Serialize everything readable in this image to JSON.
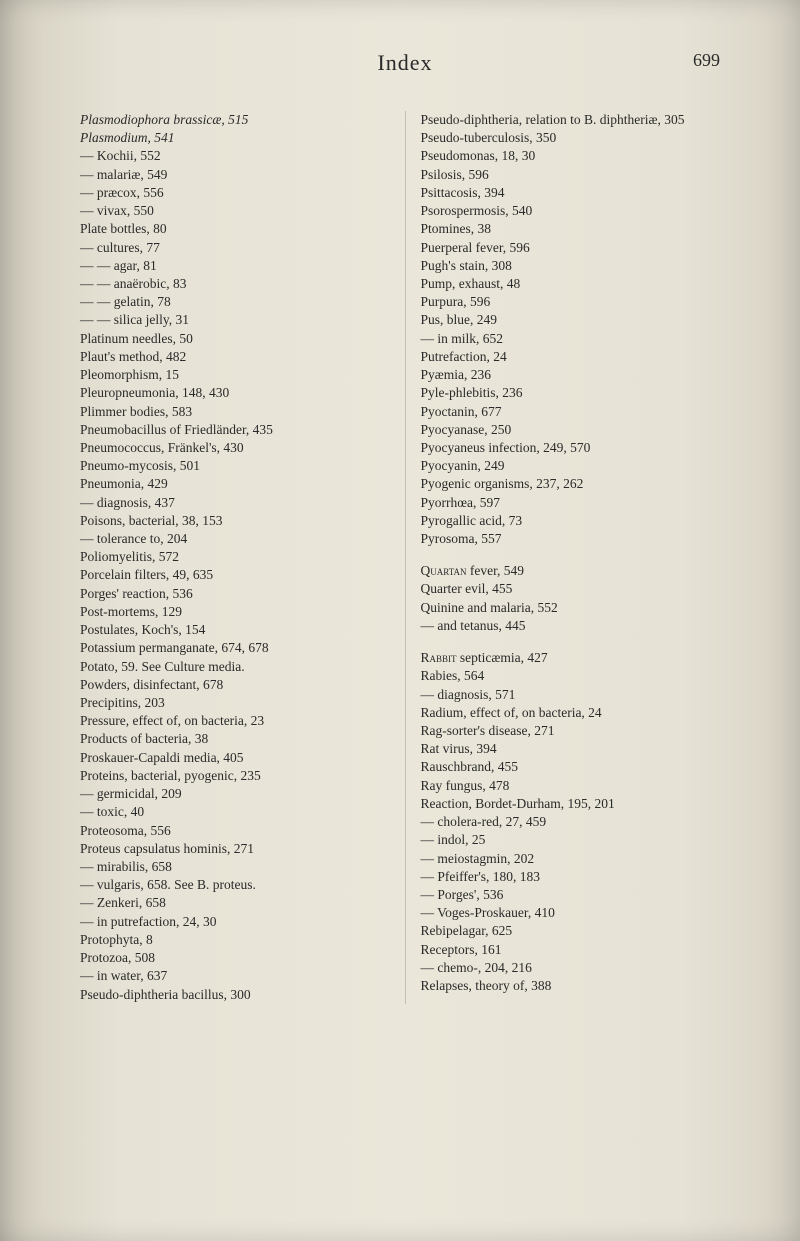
{
  "header": {
    "title": "Index",
    "page_number": "699"
  },
  "left": [
    {
      "text": "Plasmodiophora brassicæ, 515",
      "lvl": 0,
      "it": true
    },
    {
      "text": "Plasmodium, 541",
      "lvl": 0,
      "it": true
    },
    {
      "text": "— Kochii, 552",
      "lvl": 0
    },
    {
      "text": "— malariæ, 549",
      "lvl": 0
    },
    {
      "text": "— præcox, 556",
      "lvl": 0
    },
    {
      "text": "— vivax, 550",
      "lvl": 0
    },
    {
      "text": "Plate bottles, 80",
      "lvl": 0
    },
    {
      "text": "— cultures, 77",
      "lvl": 0
    },
    {
      "text": "— — agar, 81",
      "lvl": 0
    },
    {
      "text": "— — anaërobic, 83",
      "lvl": 0
    },
    {
      "text": "— — gelatin, 78",
      "lvl": 0
    },
    {
      "text": "— — silica jelly, 31",
      "lvl": 0
    },
    {
      "text": "Platinum needles, 50",
      "lvl": 0
    },
    {
      "text": "Plaut's method, 482",
      "lvl": 0
    },
    {
      "text": "Pleomorphism, 15",
      "lvl": 0
    },
    {
      "text": "Pleuropneumonia, 148, 430",
      "lvl": 0
    },
    {
      "text": "Plimmer bodies, 583",
      "lvl": 0
    },
    {
      "text": "Pneumobacillus of Friedländer, 435",
      "lvl": 0
    },
    {
      "text": "Pneumococcus, Fränkel's, 430",
      "lvl": 0
    },
    {
      "text": "Pneumo-mycosis, 501",
      "lvl": 0
    },
    {
      "text": "Pneumonia, 429",
      "lvl": 0
    },
    {
      "text": "— diagnosis, 437",
      "lvl": 0
    },
    {
      "text": "Poisons, bacterial, 38, 153",
      "lvl": 0
    },
    {
      "text": "— tolerance to, 204",
      "lvl": 0
    },
    {
      "text": "Poliomyelitis, 572",
      "lvl": 0
    },
    {
      "text": "Porcelain filters, 49, 635",
      "lvl": 0
    },
    {
      "text": "Porges' reaction, 536",
      "lvl": 0
    },
    {
      "text": "Post-mortems, 129",
      "lvl": 0
    },
    {
      "text": "Postulates, Koch's, 154",
      "lvl": 0
    },
    {
      "text": "Potassium permanganate, 674, 678",
      "lvl": 0
    },
    {
      "text": "Potato, 59. See Culture media.",
      "lvl": 0
    },
    {
      "text": "Powders, disinfectant, 678",
      "lvl": 0
    },
    {
      "text": "Precipitins, 203",
      "lvl": 0
    },
    {
      "text": "Pressure, effect of, on bacteria, 23",
      "lvl": 0
    },
    {
      "text": "Products of bacteria, 38",
      "lvl": 0
    },
    {
      "text": "Proskauer-Capaldi media, 405",
      "lvl": 0
    },
    {
      "text": "Proteins, bacterial, pyogenic, 235",
      "lvl": 0
    },
    {
      "text": "— germicidal, 209",
      "lvl": 0
    },
    {
      "text": "— toxic, 40",
      "lvl": 0
    },
    {
      "text": "Proteosoma, 556",
      "lvl": 0
    },
    {
      "text": "Proteus capsulatus hominis, 271",
      "lvl": 0
    },
    {
      "text": "— mirabilis, 658",
      "lvl": 0
    },
    {
      "text": "— vulgaris, 658. See B. proteus.",
      "lvl": 0
    },
    {
      "text": "— Zenkeri, 658",
      "lvl": 0
    },
    {
      "text": "— in putrefaction, 24, 30",
      "lvl": 0
    },
    {
      "text": "Protophyta, 8",
      "lvl": 0
    },
    {
      "text": "Protozoa, 508",
      "lvl": 0
    },
    {
      "text": "— in water, 637",
      "lvl": 0
    },
    {
      "text": "Pseudo-diphtheria bacillus, 300",
      "lvl": 0
    }
  ],
  "right": [
    {
      "text": "Pseudo-diphtheria, relation to B. diphtheriæ, 305",
      "lvl": 0
    },
    {
      "text": "Pseudo-tuberculosis, 350",
      "lvl": 0
    },
    {
      "text": "Pseudomonas, 18, 30",
      "lvl": 0
    },
    {
      "text": "Psilosis, 596",
      "lvl": 0
    },
    {
      "text": "Psittacosis, 394",
      "lvl": 0
    },
    {
      "text": "Psorospermosis, 540",
      "lvl": 0
    },
    {
      "text": "Ptomines, 38",
      "lvl": 0
    },
    {
      "text": "Puerperal fever, 596",
      "lvl": 0
    },
    {
      "text": "Pugh's stain, 308",
      "lvl": 0
    },
    {
      "text": "Pump, exhaust, 48",
      "lvl": 0
    },
    {
      "text": "Purpura, 596",
      "lvl": 0
    },
    {
      "text": "Pus, blue, 249",
      "lvl": 0
    },
    {
      "text": "— in milk, 652",
      "lvl": 0
    },
    {
      "text": "Putrefaction, 24",
      "lvl": 0
    },
    {
      "text": "Pyæmia, 236",
      "lvl": 0
    },
    {
      "text": "Pyle-phlebitis, 236",
      "lvl": 0
    },
    {
      "text": "Pyoctanin, 677",
      "lvl": 0
    },
    {
      "text": "Pyocyanase, 250",
      "lvl": 0
    },
    {
      "text": "Pyocyaneus infection, 249, 570",
      "lvl": 0
    },
    {
      "text": "Pyocyanin, 249",
      "lvl": 0
    },
    {
      "text": "Pyogenic organisms, 237, 262",
      "lvl": 0
    },
    {
      "text": "Pyorrhœa, 597",
      "lvl": 0
    },
    {
      "text": "Pyrogallic acid, 73",
      "lvl": 0
    },
    {
      "text": "Pyrosoma, 557",
      "lvl": 0
    },
    {
      "gap": true
    },
    {
      "text": "Quartan fever, 549",
      "lvl": 0,
      "sc": "Quartan"
    },
    {
      "text": "Quarter evil, 455",
      "lvl": 0
    },
    {
      "text": "Quinine and malaria, 552",
      "lvl": 0
    },
    {
      "text": "— and tetanus, 445",
      "lvl": 0
    },
    {
      "gap": true
    },
    {
      "text": "Rabbit septicæmia, 427",
      "lvl": 0,
      "sc": "Rabbit"
    },
    {
      "text": "Rabies, 564",
      "lvl": 0
    },
    {
      "text": "— diagnosis, 571",
      "lvl": 0
    },
    {
      "text": "Radium, effect of, on bacteria, 24",
      "lvl": 0
    },
    {
      "text": "Rag-sorter's disease, 271",
      "lvl": 0
    },
    {
      "text": "Rat virus, 394",
      "lvl": 0
    },
    {
      "text": "Rauschbrand, 455",
      "lvl": 0
    },
    {
      "text": "Ray fungus, 478",
      "lvl": 0
    },
    {
      "text": "Reaction, Bordet-Durham, 195, 201",
      "lvl": 0
    },
    {
      "text": "— cholera-red, 27, 459",
      "lvl": 0
    },
    {
      "text": "— indol, 25",
      "lvl": 0
    },
    {
      "text": "— meiostagmin, 202",
      "lvl": 0
    },
    {
      "text": "— Pfeiffer's, 180, 183",
      "lvl": 0
    },
    {
      "text": "— Porges', 536",
      "lvl": 0
    },
    {
      "text": "— Voges-Proskauer, 410",
      "lvl": 0
    },
    {
      "text": "Rebipelagar, 625",
      "lvl": 0
    },
    {
      "text": "Receptors, 161",
      "lvl": 0
    },
    {
      "text": "— chemo-, 204, 216",
      "lvl": 0
    },
    {
      "text": "Relapses, theory of, 388",
      "lvl": 0
    }
  ]
}
